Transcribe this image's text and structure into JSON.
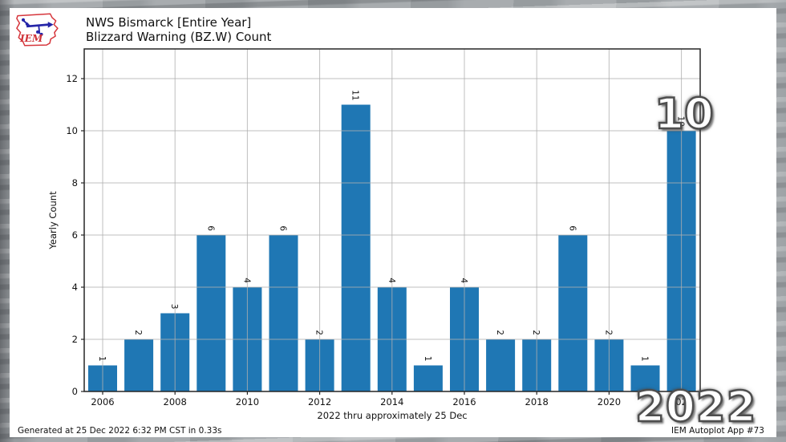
{
  "header": {
    "logo_text": "IEM",
    "title_line1": "NWS Bismarck [Entire Year]",
    "title_line2": "Blizzard Warning (BZ.W) Count"
  },
  "chart_data": {
    "type": "bar",
    "title": "NWS Bismarck [Entire Year] Blizzard Warning (BZ.W) Count",
    "categories": [
      2006,
      2007,
      2008,
      2009,
      2010,
      2011,
      2012,
      2013,
      2014,
      2015,
      2016,
      2017,
      2018,
      2019,
      2020,
      2021,
      2022
    ],
    "values": [
      1,
      2,
      3,
      6,
      4,
      6,
      2,
      11,
      4,
      1,
      4,
      2,
      2,
      6,
      2,
      1,
      10
    ],
    "xlabel": "2022 thru approximately 25 Dec",
    "ylabel": "Yearly Count",
    "xticks": [
      2006,
      2008,
      2010,
      2012,
      2014,
      2016,
      2018,
      2020,
      2022
    ],
    "yticks": [
      0,
      2,
      4,
      6,
      8,
      10,
      12
    ],
    "ylim": [
      0,
      13.1
    ],
    "grid": true,
    "bar_label_rotation": 90,
    "bar_color": "#1f77b4",
    "grid_color": "#b0b0b0",
    "axis_color": "#262626",
    "legend": "none"
  },
  "overlay": {
    "count": "10",
    "year": "2022"
  },
  "footer": {
    "generated": "Generated at 25 Dec 2022 6:32 PM CST in 0.33s",
    "app": "IEM Autoplot App #73"
  }
}
